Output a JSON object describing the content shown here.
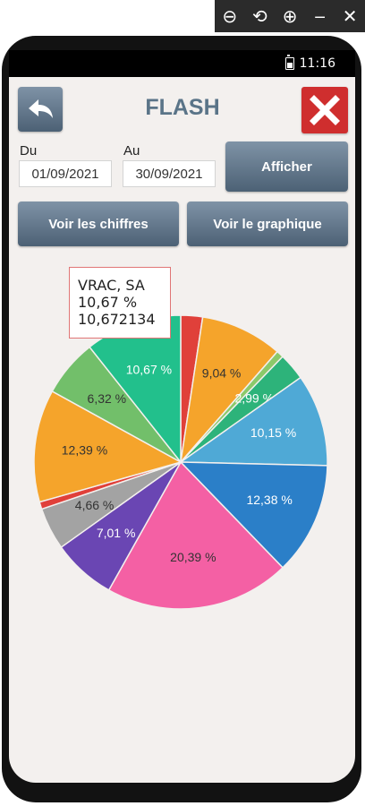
{
  "emulator_tools": {
    "back": "⊖",
    "rotate": "⟲",
    "zoom": "⊕",
    "minimize": "‒",
    "close": "✕"
  },
  "status": {
    "time": "11:16"
  },
  "header": {
    "title": "FLASH",
    "back_icon": "back-arrow-icon",
    "close_icon": "close-icon"
  },
  "dates": {
    "from_label": "Du",
    "from_value": "01/09/2021",
    "to_label": "Au",
    "to_value": "30/09/2021"
  },
  "buttons": {
    "show": "Afficher",
    "view_numbers": "Voir les chiffres",
    "view_chart": "Voir le graphique"
  },
  "tooltip": {
    "name": "VRAC, SA",
    "percent": "10,67 %",
    "value": "10,672134"
  },
  "chart_data": {
    "type": "pie",
    "slices": [
      {
        "value": 2.4,
        "label": "",
        "color": "#e0403a"
      },
      {
        "value": 9.04,
        "label": "9,04 %",
        "color": "#f5a42b"
      },
      {
        "value": 0.8,
        "label": "",
        "color": "#8bc96a"
      },
      {
        "value": 2.99,
        "label": "2,99 %",
        "color": "#2db37a"
      },
      {
        "value": 10.15,
        "label": "10,15 %",
        "color": "#4fa9d6"
      },
      {
        "value": 12.38,
        "label": "12,38 %",
        "color": "#2b7fc8"
      },
      {
        "value": 20.39,
        "label": "20,39 %",
        "color": "#f460a4"
      },
      {
        "value": 7.01,
        "label": "7,01 %",
        "color": "#6a46b3"
      },
      {
        "value": 4.66,
        "label": "4,66 %",
        "color": "#a3a3a3"
      },
      {
        "value": 0.8,
        "label": "",
        "color": "#e0403a"
      },
      {
        "value": 12.39,
        "label": "12,39 %",
        "color": "#f5a42b"
      },
      {
        "value": 6.32,
        "label": "6,32 %",
        "color": "#72bf6a"
      },
      {
        "value": 10.67,
        "label": "10,67 %",
        "color": "#22c08c"
      }
    ]
  }
}
